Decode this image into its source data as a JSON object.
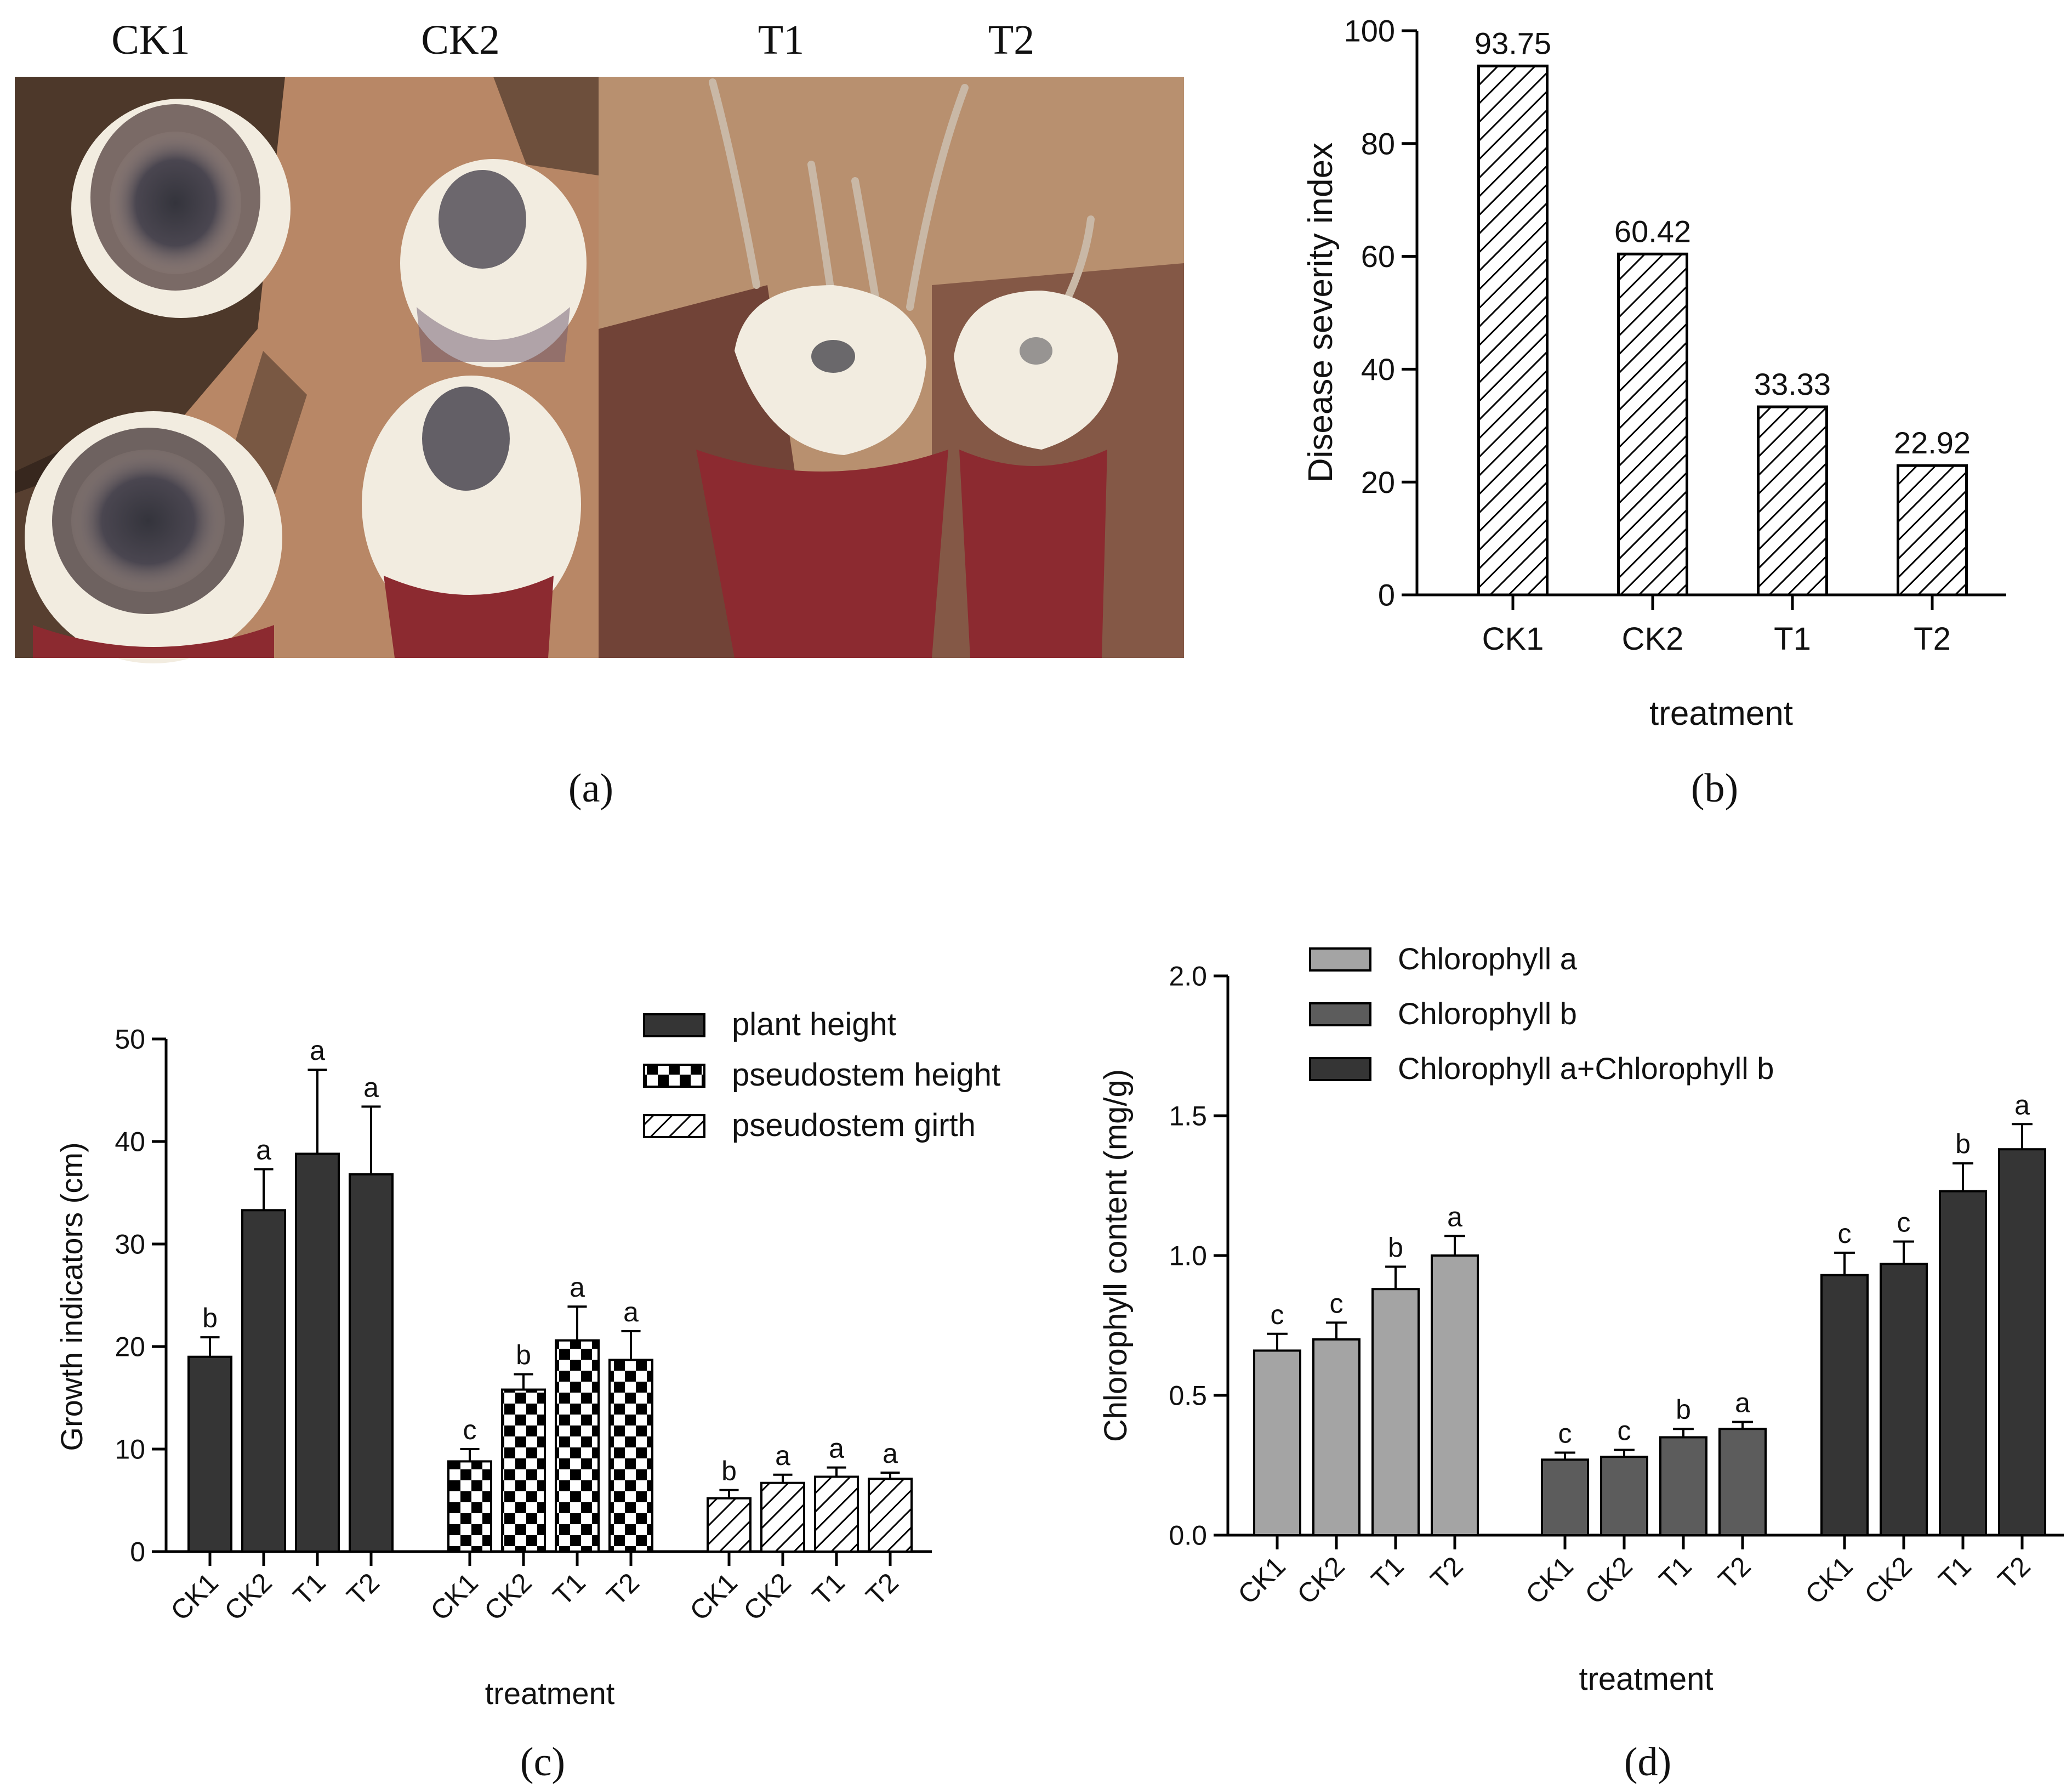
{
  "figure": {
    "photo_labels": [
      "CK1",
      "CK2",
      "T1",
      "T2"
    ],
    "panel_labels": [
      "(a)",
      "(b)",
      "(c)",
      "(d)"
    ]
  },
  "colors": {
    "dark_bar": "#353535",
    "mid_bar": "#5c5c5c",
    "light_bar": "#a4a4a4",
    "axis": "#000000",
    "photo_wood": "#b88766",
    "photo_wood_dark": "#8f6246",
    "soil": "#3a2a20",
    "corm_white": "#f2ece0",
    "corm_rot": "#3c3c44",
    "stem_red": "#8c2a30"
  },
  "chart_data": [
    {
      "id": "b",
      "type": "bar",
      "title": "",
      "xlabel": "treatment",
      "ylabel": "Disease severity index",
      "categories": [
        "CK1",
        "CK2",
        "T1",
        "T2"
      ],
      "values": [
        93.75,
        60.42,
        33.33,
        22.92
      ],
      "value_labels": [
        "93.75",
        "60.42",
        "33.33",
        "22.92"
      ],
      "ylim": [
        0,
        100
      ],
      "yticks": [
        0,
        20,
        40,
        60,
        80,
        100
      ],
      "ytick_labels": [
        "0",
        "20",
        "40",
        "60",
        "80",
        "100"
      ],
      "pattern": "diagonal-hatch",
      "grid": false
    },
    {
      "id": "c",
      "type": "bar",
      "title": "",
      "xlabel": "treatment",
      "ylabel": "Growth indicators (cm)",
      "categories": [
        "CK1",
        "CK2",
        "T1",
        "T2"
      ],
      "ylim": [
        0,
        50
      ],
      "yticks": [
        0,
        10,
        20,
        30,
        40,
        50
      ],
      "ytick_labels": [
        "0",
        "10",
        "20",
        "30",
        "40",
        "50"
      ],
      "legend": "top-right",
      "grid": false,
      "series": [
        {
          "name": "plant height",
          "pattern": "solid-dark",
          "values": [
            19.0,
            33.3,
            38.8,
            36.8
          ],
          "errors": [
            1.9,
            4.0,
            8.2,
            6.6
          ],
          "letters": [
            "b",
            "a",
            "a",
            "a"
          ]
        },
        {
          "name": "pseudostem height",
          "pattern": "checker",
          "values": [
            8.8,
            15.8,
            20.6,
            18.7
          ],
          "errors": [
            1.2,
            1.5,
            3.3,
            2.8
          ],
          "letters": [
            "c",
            "b",
            "a",
            "a"
          ]
        },
        {
          "name": "pseudostem girth",
          "pattern": "diagonal-hatch",
          "values": [
            5.2,
            6.7,
            7.3,
            7.1
          ],
          "errors": [
            0.8,
            0.8,
            0.9,
            0.6
          ],
          "letters": [
            "b",
            "a",
            "a",
            "a"
          ]
        }
      ]
    },
    {
      "id": "d",
      "type": "bar",
      "title": "",
      "xlabel": "treatment",
      "ylabel": "Chlorophyll content (mg/g)",
      "categories": [
        "CK1",
        "CK2",
        "T1",
        "T2"
      ],
      "ylim": [
        0,
        2.0
      ],
      "yticks": [
        0,
        0.5,
        1.0,
        1.5,
        2.0
      ],
      "ytick_labels": [
        "0.0",
        "0.5",
        "1.0",
        "1.5",
        "2.0"
      ],
      "legend": "top-left",
      "grid": false,
      "series": [
        {
          "name": "Chlorophyll a",
          "pattern": "solid-light",
          "values": [
            0.66,
            0.7,
            0.88,
            1.0
          ],
          "errors": [
            0.06,
            0.06,
            0.08,
            0.07
          ],
          "letters": [
            "c",
            "c",
            "b",
            "a"
          ]
        },
        {
          "name": "Chlorophyll b",
          "pattern": "solid-mid",
          "values": [
            0.27,
            0.28,
            0.35,
            0.38
          ],
          "errors": [
            0.025,
            0.025,
            0.03,
            0.025
          ],
          "letters": [
            "c",
            "c",
            "b",
            "a"
          ]
        },
        {
          "name": "Chlorophyll a+Chlorophyll b",
          "pattern": "solid-dark",
          "values": [
            0.93,
            0.97,
            1.23,
            1.38
          ],
          "errors": [
            0.08,
            0.08,
            0.1,
            0.09
          ],
          "letters": [
            "c",
            "c",
            "b",
            "a"
          ]
        }
      ]
    }
  ]
}
